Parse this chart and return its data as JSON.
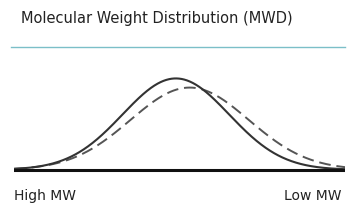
{
  "title": "Molecular Weight Distribution (MWD)",
  "title_fontsize": 10.5,
  "xlabel_left": "High MW",
  "xlabel_right": "Low MW",
  "xlabel_fontsize": 10,
  "background_color": "#ffffff",
  "curve1_mean": -0.1,
  "curve1_std": 1.35,
  "curve1_color": "#333333",
  "curve1_lw": 1.5,
  "curve2_mean": 0.25,
  "curve2_std": 1.5,
  "curve2_color": "#555555",
  "curve2_lw": 1.4,
  "xmin": -4.2,
  "xmax": 4.2,
  "ymin": -0.015,
  "ymax": 0.38,
  "title_line_color": "#7bbfc8",
  "baseline_color": "#111111",
  "baseline_lw": 2.2
}
